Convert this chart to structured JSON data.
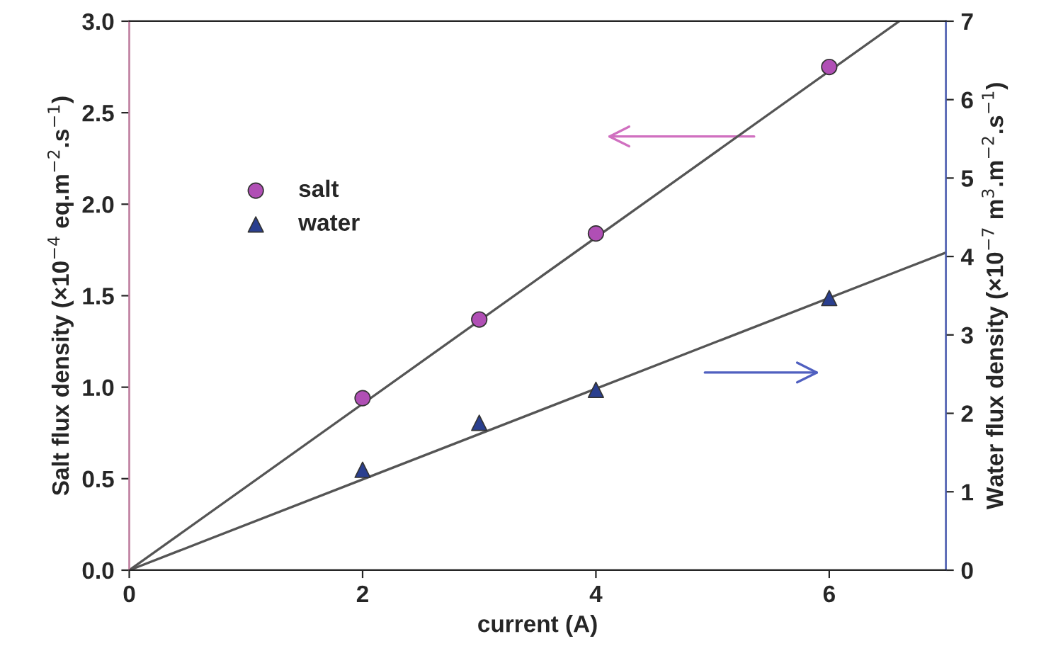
{
  "chart_data": {
    "type": "scatter",
    "xlabel": "current (A)",
    "ylabel": "Salt flux density (×10$^{−4}$ eq.m$^{−2}$.s$^{−1}$)",
    "y2label": "Water flux density (×10$^{−7}$ m$^{3}$.m$^{−2}$.s$^{−1}$)",
    "xlim": [
      0,
      7
    ],
    "xticks": [
      0,
      2,
      4,
      6
    ],
    "ylim": [
      0,
      3.0
    ],
    "yticks": [
      {
        "value": 0,
        "label": "0.0"
      },
      {
        "value": 0.5,
        "label": "0.5"
      },
      {
        "value": 1,
        "label": "1.0"
      },
      {
        "value": 1.5,
        "label": "1.5"
      },
      {
        "value": 2,
        "label": "2.0"
      },
      {
        "value": 2.5,
        "label": "2.5"
      },
      {
        "value": 3,
        "label": "3.0"
      }
    ],
    "y2lim": [
      0,
      7
    ],
    "y2ticks": [
      0,
      1,
      2,
      3,
      4,
      5,
      6,
      7
    ],
    "legend": "top left",
    "grid": false,
    "series": [
      {
        "type": "line",
        "color": "#555555",
        "x": [
          0,
          6.6
        ],
        "values": [
          0,
          3.0
        ],
        "marker": "none",
        "line_style": "solid"
      },
      {
        "type": "line",
        "color": "#555555",
        "x": [
          0,
          7
        ],
        "values": [
          0,
          4.05
        ],
        "axis": "y2",
        "marker": "none",
        "line_style": "solid"
      },
      {
        "name": "salt",
        "color": "#b04fb5",
        "x": [
          2,
          3,
          4,
          6
        ],
        "values": [
          0.94,
          1.37,
          1.84,
          2.75
        ],
        "marker": "circle"
      },
      {
        "name": "water",
        "color": "#2a3f8f",
        "x": [
          2,
          3,
          4,
          6
        ],
        "values": [
          1.28,
          1.88,
          2.3,
          3.47
        ],
        "axis": "y2",
        "marker": "triangle"
      }
    ]
  }
}
